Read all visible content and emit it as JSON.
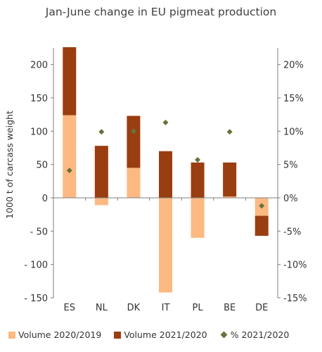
{
  "colors": {
    "volume_2020_2019": "#fcb981",
    "volume_2021_2020": "#9a3d10",
    "pct_2021_2020": "#68723e",
    "axis": "#7f7f7f",
    "text": "#333333"
  },
  "chart_data": {
    "type": "bar",
    "title": "Jan-June change in EU pigmeat production",
    "ylabel": "1000 t of carcass weight",
    "y2label": "",
    "categories": [
      "ES",
      "NL",
      "DK",
      "IT",
      "PL",
      "BE",
      "DE"
    ],
    "ylim": [
      -150,
      225
    ],
    "yticks": [
      200,
      150,
      100,
      50,
      0,
      -50,
      -100,
      -150
    ],
    "ytick_labels": [
      "200",
      "150",
      "100",
      "50",
      "0",
      "- 50",
      "- 100",
      "- 150"
    ],
    "y2lim": [
      -15,
      22.5
    ],
    "y2ticks": [
      20,
      15,
      10,
      5,
      0,
      -5,
      -10,
      -15
    ],
    "y2tick_labels": [
      "20%",
      "15%",
      "10%",
      "5%",
      "0%",
      "-5%",
      "-10%",
      "-15%"
    ],
    "grid": false,
    "legend_position": "bottom",
    "series": [
      {
        "name": "Volume 2020/2019",
        "kind": "stacked-bar",
        "values": [
          124,
          -11,
          45,
          -142,
          -60,
          2,
          -27
        ]
      },
      {
        "name": "Volume 2021/2020",
        "kind": "stacked-bar",
        "values": [
          102,
          78,
          78,
          70,
          53,
          51,
          -30
        ]
      },
      {
        "name": "% 2021/2020",
        "kind": "scatter",
        "axis": "secondary",
        "values": [
          4.1,
          9.9,
          10.0,
          11.3,
          5.7,
          9.9,
          -1.2
        ]
      }
    ]
  }
}
